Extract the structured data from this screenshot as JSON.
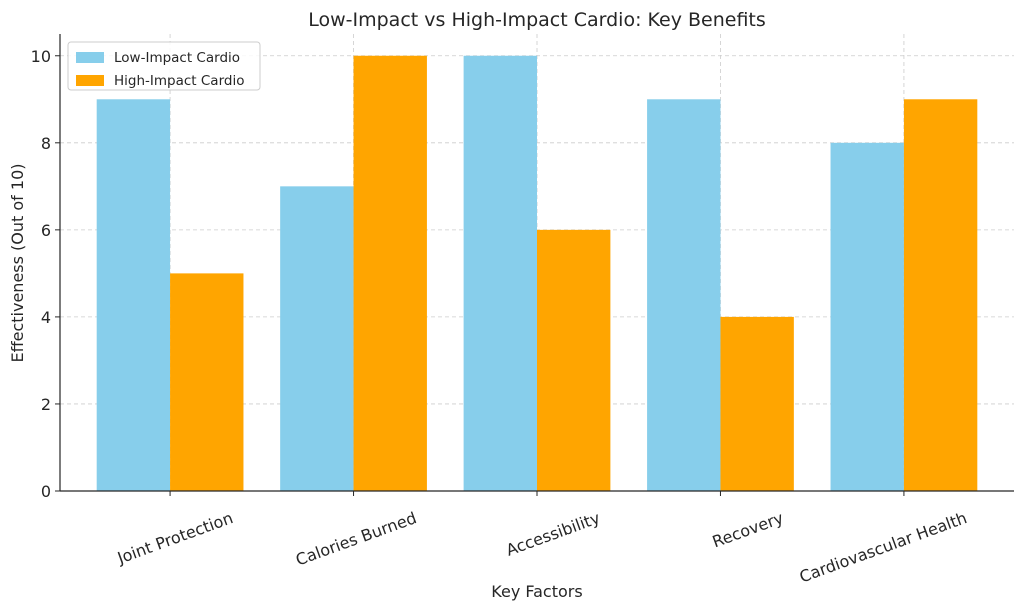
{
  "chart_data": {
    "type": "bar",
    "title": "Low-Impact vs High-Impact Cardio: Key Benefits",
    "xlabel": "Key Factors",
    "ylabel": "Effectiveness (Out of 10)",
    "categories": [
      "Joint Protection",
      "Calories Burned",
      "Accessibility",
      "Recovery",
      "Cardiovascular Health"
    ],
    "series": [
      {
        "name": "Low-Impact Cardio",
        "values": [
          9,
          7,
          10,
          9,
          8
        ],
        "color": "#87CEEB"
      },
      {
        "name": "High-Impact Cardio",
        "values": [
          5,
          10,
          6,
          4,
          9
        ],
        "color": "#FFA500"
      }
    ],
    "ylim": [
      0,
      10.5
    ],
    "yticks": [
      0,
      2,
      4,
      6,
      8,
      10
    ],
    "grid": true,
    "legend": "top-left"
  }
}
